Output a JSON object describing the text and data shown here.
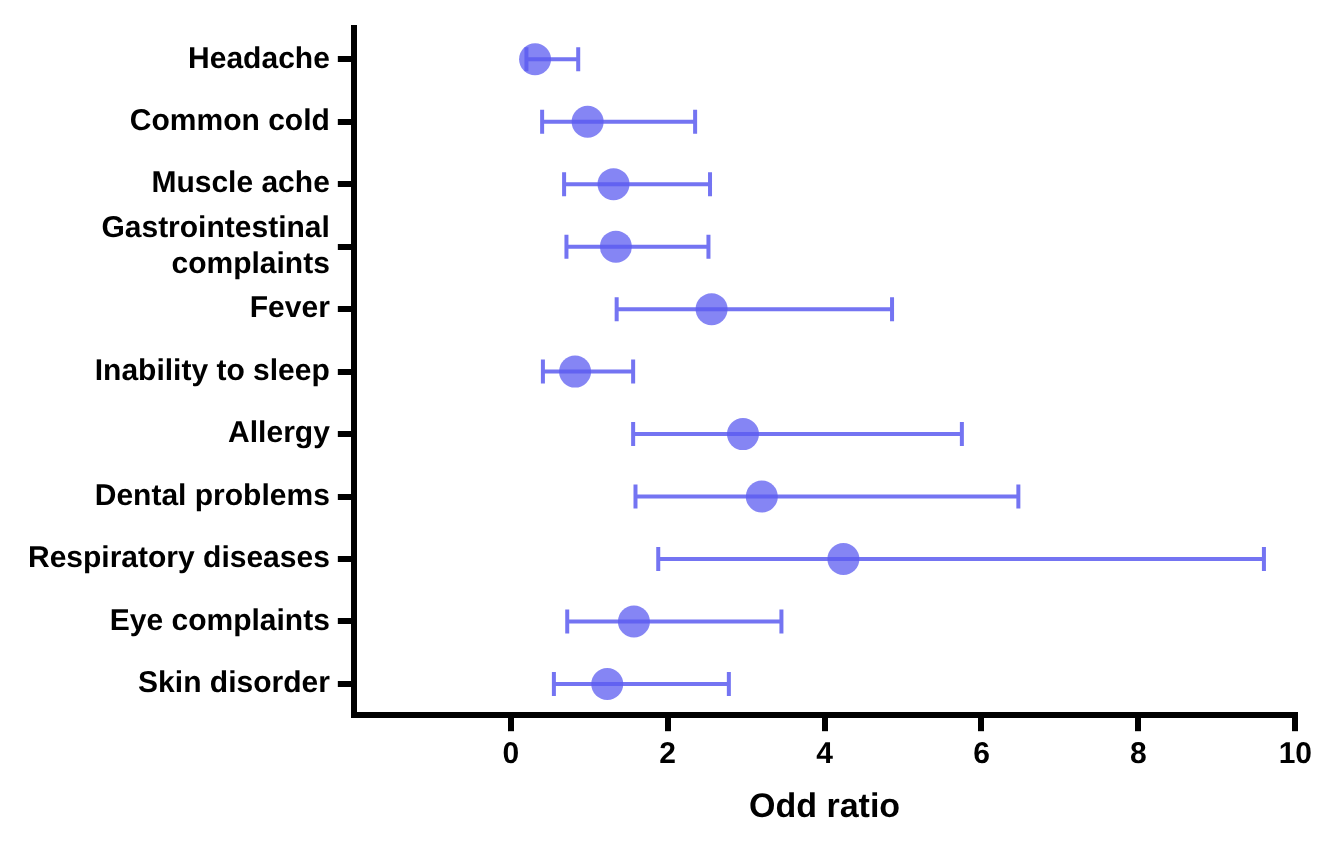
{
  "chart_data": {
    "type": "scatter",
    "orientation": "horizontal",
    "xlabel": "Odd ratio",
    "categories": [
      "Headache",
      "Common cold",
      "Muscle ache",
      "Gastrointestinal\ncomplaints",
      "Fever",
      "Inability to sleep",
      "Allergy",
      "Dental problems",
      "Respiratory diseases",
      "Eye complaints",
      "Skin disorder"
    ],
    "values": [
      0.31,
      0.98,
      1.31,
      1.34,
      2.56,
      0.82,
      2.96,
      3.2,
      4.24,
      1.57,
      1.23
    ],
    "errors": [
      [
        0.2,
        0.86
      ],
      [
        0.4,
        2.35
      ],
      [
        0.68,
        2.54
      ],
      [
        0.71,
        2.52
      ],
      [
        1.35,
        4.86
      ],
      [
        0.41,
        1.56
      ],
      [
        1.56,
        5.75
      ],
      [
        1.59,
        6.47
      ],
      [
        1.88,
        9.6
      ],
      [
        0.72,
        3.45
      ],
      [
        0.55,
        2.78
      ]
    ],
    "color": "#5c5cf0",
    "marker": "circle",
    "xlim": [
      -2,
      10
    ],
    "xticks": [
      0,
      2,
      4,
      6,
      8,
      10
    ],
    "grid": false,
    "legend": false
  }
}
